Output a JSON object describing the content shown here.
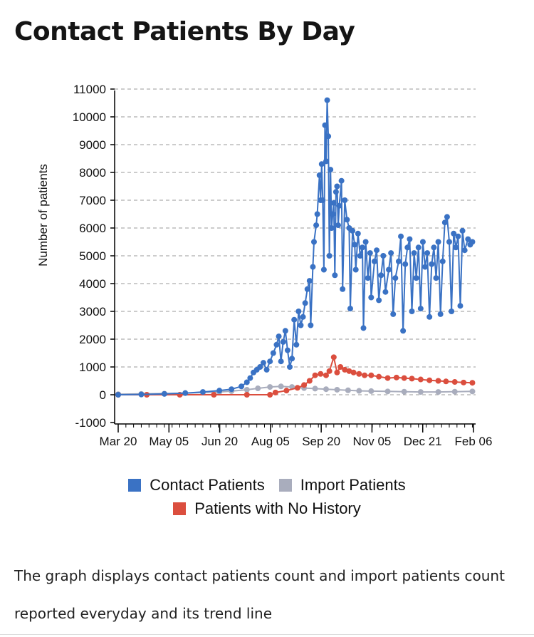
{
  "title": "Contact Patients By Day",
  "description": "The graph displays contact patients count and import patients count reported everyday and its trend line",
  "chart_data": {
    "type": "line",
    "ylabel": "Number of patients",
    "xlabel": "",
    "ylim": [
      -1000,
      11000
    ],
    "yticks": [
      -1000,
      0,
      1000,
      2000,
      3000,
      4000,
      5000,
      6000,
      7000,
      8000,
      9000,
      10000,
      11000
    ],
    "x_start": "2020-03-20",
    "x_end": "2021-02-06",
    "xtick_labels": [
      "Mar 20",
      "May 05",
      "Jun 20",
      "Aug 05",
      "Sep 20",
      "Nov 05",
      "Dec 21",
      "Feb 06"
    ],
    "grid": "horizontal dashed",
    "legend_position": "bottom",
    "series": [
      {
        "name": "Contact Patients",
        "color": "#3a72c4",
        "points": [
          [
            "2020-03-20",
            0
          ],
          [
            "2020-04-10",
            10
          ],
          [
            "2020-05-01",
            30
          ],
          [
            "2020-05-20",
            60
          ],
          [
            "2020-06-05",
            100
          ],
          [
            "2020-06-20",
            150
          ],
          [
            "2020-07-01",
            200
          ],
          [
            "2020-07-10",
            300
          ],
          [
            "2020-07-15",
            450
          ],
          [
            "2020-07-18",
            600
          ],
          [
            "2020-07-21",
            800
          ],
          [
            "2020-07-24",
            900
          ],
          [
            "2020-07-27",
            1000
          ],
          [
            "2020-07-30",
            1150
          ],
          [
            "2020-08-02",
            900
          ],
          [
            "2020-08-05",
            1200
          ],
          [
            "2020-08-08",
            1500
          ],
          [
            "2020-08-11",
            1800
          ],
          [
            "2020-08-13",
            2100
          ],
          [
            "2020-08-15",
            1200
          ],
          [
            "2020-08-17",
            1900
          ],
          [
            "2020-08-19",
            2300
          ],
          [
            "2020-08-21",
            1600
          ],
          [
            "2020-08-23",
            1000
          ],
          [
            "2020-08-25",
            1300
          ],
          [
            "2020-08-27",
            2700
          ],
          [
            "2020-08-29",
            1800
          ],
          [
            "2020-08-31",
            3000
          ],
          [
            "2020-09-02",
            2500
          ],
          [
            "2020-09-04",
            2800
          ],
          [
            "2020-09-06",
            3300
          ],
          [
            "2020-09-08",
            3800
          ],
          [
            "2020-09-10",
            4100
          ],
          [
            "2020-09-11",
            2500
          ],
          [
            "2020-09-13",
            4600
          ],
          [
            "2020-09-14",
            5500
          ],
          [
            "2020-09-16",
            6100
          ],
          [
            "2020-09-17",
            6500
          ],
          [
            "2020-09-19",
            7900
          ],
          [
            "2020-09-20",
            7000
          ],
          [
            "2020-09-21",
            8300
          ],
          [
            "2020-09-22",
            7000
          ],
          [
            "2020-09-23",
            4500
          ],
          [
            "2020-09-24",
            9700
          ],
          [
            "2020-09-25",
            8400
          ],
          [
            "2020-09-26",
            10600
          ],
          [
            "2020-09-27",
            9300
          ],
          [
            "2020-09-28",
            5000
          ],
          [
            "2020-09-29",
            8100
          ],
          [
            "2020-09-30",
            6000
          ],
          [
            "2020-10-01",
            6500
          ],
          [
            "2020-10-02",
            6900
          ],
          [
            "2020-10-03",
            4300
          ],
          [
            "2020-10-04",
            7300
          ],
          [
            "2020-10-05",
            7500
          ],
          [
            "2020-10-06",
            6100
          ],
          [
            "2020-10-07",
            6800
          ],
          [
            "2020-10-09",
            7700
          ],
          [
            "2020-10-10",
            3800
          ],
          [
            "2020-10-12",
            7000
          ],
          [
            "2020-10-14",
            6300
          ],
          [
            "2020-10-16",
            6000
          ],
          [
            "2020-10-17",
            3100
          ],
          [
            "2020-10-19",
            5900
          ],
          [
            "2020-10-21",
            5400
          ],
          [
            "2020-10-22",
            4500
          ],
          [
            "2020-10-24",
            5800
          ],
          [
            "2020-10-26",
            5000
          ],
          [
            "2020-10-28",
            5300
          ],
          [
            "2020-10-29",
            2400
          ],
          [
            "2020-10-31",
            5500
          ],
          [
            "2020-11-02",
            4200
          ],
          [
            "2020-11-04",
            5100
          ],
          [
            "2020-11-05",
            3500
          ],
          [
            "2020-11-08",
            4800
          ],
          [
            "2020-11-10",
            5200
          ],
          [
            "2020-11-12",
            3400
          ],
          [
            "2020-11-14",
            4300
          ],
          [
            "2020-11-16",
            5000
          ],
          [
            "2020-11-18",
            3700
          ],
          [
            "2020-11-21",
            4500
          ],
          [
            "2020-11-23",
            5100
          ],
          [
            "2020-11-25",
            2900
          ],
          [
            "2020-11-27",
            4200
          ],
          [
            "2020-11-30",
            4800
          ],
          [
            "2020-12-02",
            5700
          ],
          [
            "2020-12-04",
            2300
          ],
          [
            "2020-12-06",
            4700
          ],
          [
            "2020-12-08",
            5300
          ],
          [
            "2020-12-10",
            5600
          ],
          [
            "2020-12-12",
            3000
          ],
          [
            "2020-12-14",
            5100
          ],
          [
            "2020-12-16",
            4200
          ],
          [
            "2020-12-18",
            5300
          ],
          [
            "2020-12-20",
            3100
          ],
          [
            "2020-12-22",
            5500
          ],
          [
            "2020-12-24",
            4600
          ],
          [
            "2020-12-26",
            5100
          ],
          [
            "2020-12-28",
            2800
          ],
          [
            "2020-12-30",
            4700
          ],
          [
            "2021-01-01",
            5300
          ],
          [
            "2021-01-03",
            4200
          ],
          [
            "2021-01-05",
            5500
          ],
          [
            "2021-01-07",
            2900
          ],
          [
            "2021-01-09",
            4800
          ],
          [
            "2021-01-11",
            6200
          ],
          [
            "2021-01-13",
            6400
          ],
          [
            "2021-01-15",
            5500
          ],
          [
            "2021-01-17",
            3000
          ],
          [
            "2021-01-19",
            5800
          ],
          [
            "2021-01-21",
            5300
          ],
          [
            "2021-01-23",
            5700
          ],
          [
            "2021-01-25",
            3200
          ],
          [
            "2021-01-27",
            5900
          ],
          [
            "2021-01-29",
            5200
          ],
          [
            "2021-02-01",
            5600
          ],
          [
            "2021-02-03",
            5400
          ],
          [
            "2021-02-05",
            5500
          ]
        ]
      },
      {
        "name": "Import Patients",
        "color": "#a9adbd",
        "points": [
          [
            "2020-03-20",
            20
          ],
          [
            "2020-04-10",
            30
          ],
          [
            "2020-05-01",
            40
          ],
          [
            "2020-05-20",
            60
          ],
          [
            "2020-06-05",
            80
          ],
          [
            "2020-06-20",
            100
          ],
          [
            "2020-07-01",
            130
          ],
          [
            "2020-07-15",
            180
          ],
          [
            "2020-07-25",
            230
          ],
          [
            "2020-08-05",
            280
          ],
          [
            "2020-08-15",
            300
          ],
          [
            "2020-08-25",
            280
          ],
          [
            "2020-09-05",
            240
          ],
          [
            "2020-09-15",
            220
          ],
          [
            "2020-09-25",
            200
          ],
          [
            "2020-10-05",
            180
          ],
          [
            "2020-10-15",
            160
          ],
          [
            "2020-10-25",
            140
          ],
          [
            "2020-11-05",
            130
          ],
          [
            "2020-11-20",
            120
          ],
          [
            "2020-12-05",
            110
          ],
          [
            "2020-12-20",
            100
          ],
          [
            "2021-01-05",
            100
          ],
          [
            "2021-01-20",
            110
          ],
          [
            "2021-02-05",
            120
          ]
        ]
      },
      {
        "name": "Patients with No History",
        "color": "#db4e3e",
        "points": [
          [
            "2020-03-20",
            0
          ],
          [
            "2020-04-15",
            0
          ],
          [
            "2020-05-15",
            0
          ],
          [
            "2020-06-15",
            0
          ],
          [
            "2020-07-15",
            0
          ],
          [
            "2020-08-05",
            0
          ],
          [
            "2020-08-10",
            80
          ],
          [
            "2020-08-20",
            150
          ],
          [
            "2020-08-30",
            250
          ],
          [
            "2020-09-05",
            350
          ],
          [
            "2020-09-10",
            500
          ],
          [
            "2020-09-15",
            700
          ],
          [
            "2020-09-20",
            750
          ],
          [
            "2020-09-25",
            700
          ],
          [
            "2020-09-28",
            850
          ],
          [
            "2020-10-02",
            1350
          ],
          [
            "2020-10-05",
            800
          ],
          [
            "2020-10-08",
            1000
          ],
          [
            "2020-10-12",
            900
          ],
          [
            "2020-10-16",
            850
          ],
          [
            "2020-10-20",
            800
          ],
          [
            "2020-10-25",
            750
          ],
          [
            "2020-10-30",
            700
          ],
          [
            "2020-11-05",
            700
          ],
          [
            "2020-11-12",
            650
          ],
          [
            "2020-11-20",
            600
          ],
          [
            "2020-11-28",
            620
          ],
          [
            "2020-12-05",
            600
          ],
          [
            "2020-12-12",
            580
          ],
          [
            "2020-12-20",
            550
          ],
          [
            "2020-12-28",
            520
          ],
          [
            "2021-01-05",
            500
          ],
          [
            "2021-01-12",
            480
          ],
          [
            "2021-01-20",
            460
          ],
          [
            "2021-01-28",
            440
          ],
          [
            "2021-02-05",
            430
          ]
        ]
      }
    ]
  }
}
